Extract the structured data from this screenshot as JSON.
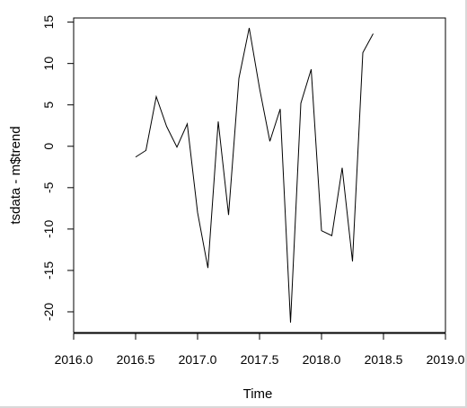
{
  "chart_data": {
    "type": "line",
    "title": "",
    "xlabel": "Time",
    "ylabel": "tsdata - m$trend",
    "xlim": [
      2016.0,
      2019.0
    ],
    "ylim": [
      -22.5,
      15.5
    ],
    "xticks": [
      "2016.0",
      "2016.5",
      "2017.0",
      "2017.5",
      "2018.0",
      "2018.5",
      "2019.0"
    ],
    "yticks": [
      "15",
      "10",
      "5",
      "0",
      "-5",
      "-10",
      "-15",
      "-20"
    ],
    "grid": false,
    "series": [
      {
        "color": "#000000",
        "x": [
          2016.5,
          2016.5833,
          2016.6667,
          2016.75,
          2016.8333,
          2016.9167,
          2017.0,
          2017.0833,
          2017.1667,
          2017.25,
          2017.3333,
          2017.4167,
          2017.5,
          2017.5833,
          2017.6667,
          2017.75,
          2017.8333,
          2017.9167,
          2018.0,
          2018.0833,
          2018.1667,
          2018.25,
          2018.3333,
          2018.4167
        ],
        "y": [
          -1.3,
          -0.5,
          6.0,
          2.4,
          -0.1,
          2.7,
          -8.0,
          -14.7,
          3.0,
          -8.3,
          8.2,
          14.3,
          7.0,
          0.6,
          4.5,
          -21.3,
          5.2,
          9.3,
          -10.2,
          -10.8,
          -2.6,
          -13.9,
          11.3,
          13.6
        ]
      }
    ]
  }
}
